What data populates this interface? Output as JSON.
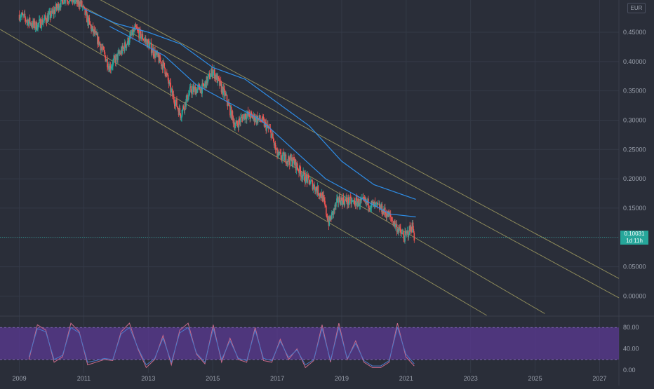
{
  "currency": "EUR",
  "last_price": {
    "value_label": "0.10031",
    "countdown": "1d 11h",
    "value": 0.10031,
    "color": "#26a69a"
  },
  "colors": {
    "background": "#2a2e39",
    "grid": "#343a47",
    "axis_text": "#9aa0ac",
    "candle_up": "#26a69a",
    "candle_down": "#ef5350",
    "ma_line": "#2e8de6",
    "channel": "#8d8a5a",
    "rsi_band": "#5b3a93",
    "rsi_line": "#c86a8a",
    "rsi_signal": "#4a78c8"
  },
  "chart_data": [
    {
      "type": "candlestick",
      "x_axis": {
        "type": "year",
        "range": [
          2008.4,
          2027.6
        ],
        "ticks": [
          "2009",
          "2011",
          "2013",
          "2015",
          "2017",
          "2019",
          "2021",
          "2023",
          "2025",
          "2027"
        ]
      },
      "y_axis": {
        "range": [
          -0.033,
          0.505
        ],
        "ticks": [
          "0.45000",
          "0.40000",
          "0.35000",
          "0.30000",
          "0.25000",
          "0.20000",
          "0.15000",
          "0.10000",
          "0.05000",
          "0.00000"
        ]
      },
      "price_path": [
        [
          2009.0,
          0.48
        ],
        [
          2009.5,
          0.46
        ],
        [
          2010.0,
          0.48
        ],
        [
          2010.4,
          0.51
        ],
        [
          2010.9,
          0.5
        ],
        [
          2011.2,
          0.46
        ],
        [
          2011.5,
          0.43
        ],
        [
          2011.8,
          0.39
        ],
        [
          2012.2,
          0.42
        ],
        [
          2012.6,
          0.455
        ],
        [
          2013.0,
          0.43
        ],
        [
          2013.5,
          0.39
        ],
        [
          2013.7,
          0.35
        ],
        [
          2014.0,
          0.31
        ],
        [
          2014.3,
          0.35
        ],
        [
          2014.7,
          0.355
        ],
        [
          2015.0,
          0.385
        ],
        [
          2015.4,
          0.34
        ],
        [
          2015.7,
          0.29
        ],
        [
          2016.0,
          0.31
        ],
        [
          2016.5,
          0.3
        ],
        [
          2016.8,
          0.28
        ],
        [
          2017.0,
          0.24
        ],
        [
          2017.5,
          0.23
        ],
        [
          2017.8,
          0.205
        ],
        [
          2018.1,
          0.19
        ],
        [
          2018.4,
          0.17
        ],
        [
          2018.6,
          0.125
        ],
        [
          2018.9,
          0.165
        ],
        [
          2019.3,
          0.16
        ],
        [
          2019.7,
          0.16
        ],
        [
          2020.2,
          0.15
        ],
        [
          2020.5,
          0.135
        ],
        [
          2020.8,
          0.11
        ],
        [
          2020.95,
          0.1
        ],
        [
          2021.2,
          0.12
        ],
        [
          2021.25,
          0.10031
        ]
      ],
      "moving_averages": [
        {
          "points": [
            [
              2011.0,
              0.49
            ],
            [
              2012.0,
              0.465
            ],
            [
              2013.0,
              0.45
            ],
            [
              2014.0,
              0.43
            ],
            [
              2015.0,
              0.39
            ],
            [
              2016.0,
              0.37
            ],
            [
              2017.0,
              0.33
            ],
            [
              2018.0,
              0.29
            ],
            [
              2019.0,
              0.23
            ],
            [
              2020.0,
              0.19
            ],
            [
              2021.3,
              0.165
            ]
          ]
        },
        {
          "points": [
            [
              2011.8,
              0.46
            ],
            [
              2012.5,
              0.44
            ],
            [
              2013.5,
              0.41
            ],
            [
              2014.5,
              0.36
            ],
            [
              2015.5,
              0.33
            ],
            [
              2016.5,
              0.3
            ],
            [
              2017.5,
              0.25
            ],
            [
              2018.5,
              0.2
            ],
            [
              2019.5,
              0.17
            ],
            [
              2020.5,
              0.14
            ],
            [
              2021.3,
              0.135
            ]
          ]
        }
      ],
      "channel_lines": [
        {
          "start": [
            2010.0,
            0.55
          ],
          "end": [
            2027.6,
            0.03
          ]
        },
        {
          "start": [
            2010.6,
            0.505
          ],
          "end": [
            2027.6,
            -0.003
          ]
        },
        {
          "start": [
            2009.9,
            0.465
          ],
          "end": [
            2025.3,
            -0.03
          ]
        },
        {
          "start": [
            2008.4,
            0.455
          ],
          "end": [
            2023.5,
            -0.033
          ]
        }
      ]
    },
    {
      "type": "line",
      "name": "oscillator",
      "y_axis": {
        "range": [
          -5,
          100
        ],
        "ticks": [
          "80.00",
          "40.00",
          "0.00"
        ]
      },
      "band": [
        20,
        80
      ],
      "series": [
        {
          "values": [
            20,
            85,
            75,
            15,
            25,
            88,
            72,
            10,
            15,
            20,
            18,
            72,
            88,
            40,
            5,
            20,
            65,
            10,
            75,
            88,
            30,
            12,
            85,
            15,
            60,
            20,
            15,
            80,
            18,
            15,
            58,
            20,
            40,
            5,
            18,
            85,
            15,
            88,
            20,
            55,
            15,
            5,
            5,
            15,
            88,
            25,
            8
          ]
        },
        {
          "values": [
            25,
            78,
            72,
            20,
            28,
            80,
            70,
            15,
            18,
            22,
            20,
            68,
            80,
            42,
            10,
            22,
            60,
            15,
            70,
            80,
            32,
            15,
            78,
            20,
            55,
            22,
            18,
            75,
            22,
            18,
            54,
            24,
            38,
            10,
            20,
            78,
            18,
            80,
            22,
            50,
            18,
            8,
            8,
            18,
            80,
            30,
            12
          ]
        }
      ],
      "x_start": 2009.3,
      "x_end": 2021.25
    }
  ]
}
